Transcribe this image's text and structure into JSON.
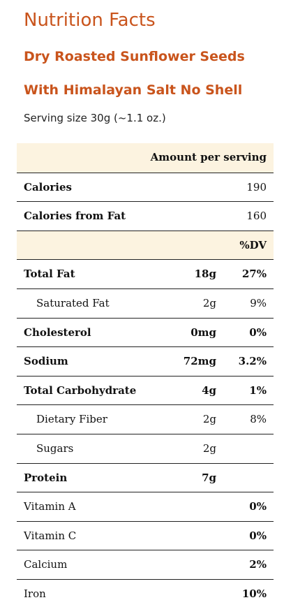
{
  "header": {
    "title": "Nutrition Facts",
    "product_line1": "Dry Roasted Sunflower Seeds",
    "product_line2": "With Himalayan Salt No Shell",
    "serving_size": "Serving size 30g (~1.1 oz.)"
  },
  "table": {
    "amount_header": "Amount per serving",
    "dv_header": "%DV",
    "calories": {
      "label": "Calories",
      "value": "190"
    },
    "calories_fat": {
      "label": "Calories from Fat",
      "value": "160"
    },
    "nutrients": [
      {
        "label": "Total Fat",
        "amount": "18g",
        "dv": "27%"
      },
      {
        "label": "Saturated Fat",
        "amount": "2g",
        "dv": "9%"
      },
      {
        "label": "Cholesterol",
        "amount": "0mg",
        "dv": "0%"
      },
      {
        "label": "Sodium",
        "amount": "72mg",
        "dv": "3.2%"
      },
      {
        "label": "Total Carbohydrate",
        "amount": "4g",
        "dv": "1%"
      },
      {
        "label": "Dietary Fiber",
        "amount": "2g",
        "dv": "8%"
      },
      {
        "label": "Sugars",
        "amount": "2g",
        "dv": ""
      },
      {
        "label": "Protein",
        "amount": "7g",
        "dv": ""
      }
    ],
    "vitamins": [
      {
        "label": "Vitamin A",
        "dv": "0%"
      },
      {
        "label": "Vitamin C",
        "dv": "0%"
      },
      {
        "label": "Calcium",
        "dv": "2%"
      },
      {
        "label": "Iron",
        "dv": "10%"
      }
    ]
  }
}
